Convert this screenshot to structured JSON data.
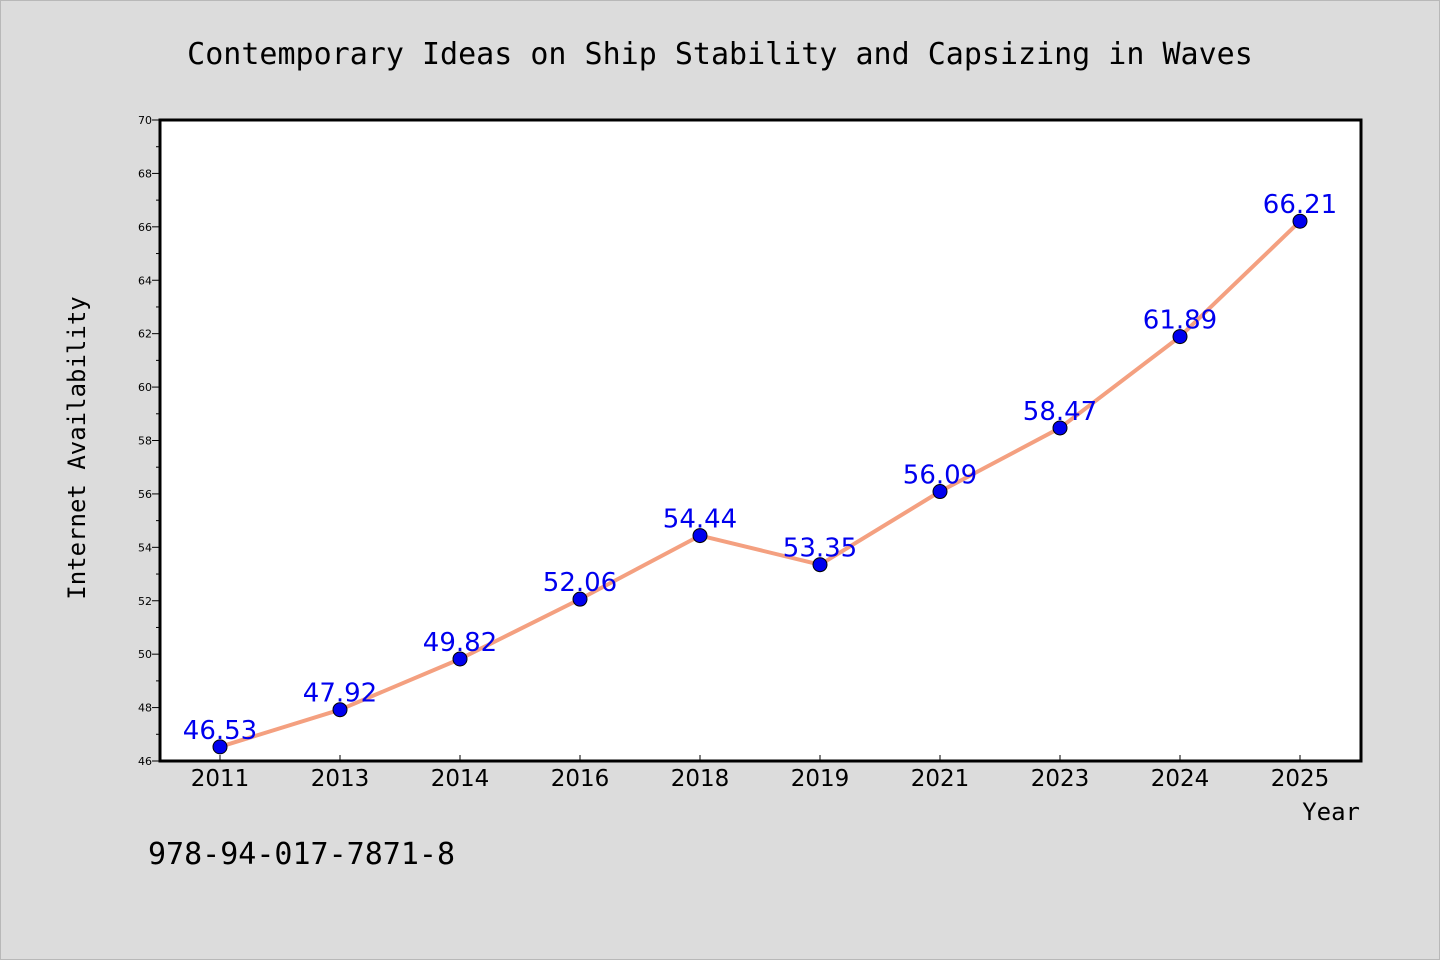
{
  "colors": {
    "background": "#dcdcdc",
    "plot_background": "#ffffff",
    "line": "#f4a080",
    "marker": "#0000ee",
    "data_label": "#0000ee",
    "axis": "#000000"
  },
  "footer": {
    "code": "978-94-017-7871-8"
  },
  "chart_data": {
    "type": "line",
    "title": "Contemporary Ideas on Ship Stability and Capsizing in Waves",
    "xlabel": "Year",
    "ylabel": "Internet Availability",
    "categories": [
      "2011",
      "2013",
      "2014",
      "2016",
      "2018",
      "2019",
      "2021",
      "2023",
      "2024",
      "2025"
    ],
    "series": [
      {
        "values": [
          46.53,
          47.92,
          49.82,
          52.06,
          54.44,
          53.35,
          56.09,
          58.47,
          61.89,
          66.21
        ],
        "data_labels": [
          "46.53",
          "47.92",
          "49.82",
          "52.06",
          "54.44",
          "53.35",
          "56.09",
          "58.47",
          "61.89",
          "66.21"
        ]
      }
    ],
    "ylim": [
      46,
      70
    ],
    "yticks": [
      "46",
      "48",
      "50",
      "52",
      "54",
      "56",
      "58",
      "60",
      "62",
      "64",
      "66",
      "68",
      "70"
    ],
    "grid": false,
    "legend": "none"
  }
}
